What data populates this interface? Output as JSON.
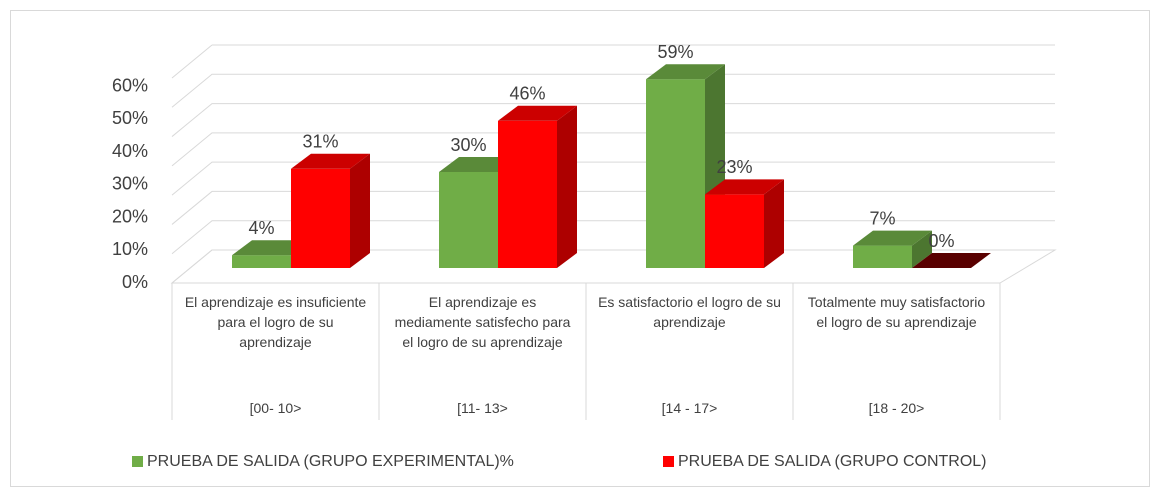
{
  "chart_data": {
    "type": "bar3d",
    "categories": [
      "El aprendizaje es insuficiente para el logro de su aprendizaje",
      "El aprendizaje es mediamente satisfecho para el logro de su aprendizaje",
      "Es satisfactorio el logro de su aprendizaje",
      "Totalmente muy satisfactorio el logro de su aprendizaje"
    ],
    "ranges": [
      "[00-  10>",
      "[11-  13>",
      "[14 - 17>",
      "[18 - 20>"
    ],
    "series": [
      {
        "name": "PRUEBA DE SALIDA (GRUPO EXPERIMENTAL)%",
        "color": "#70ad47",
        "values": [
          4,
          30,
          59,
          7
        ],
        "value_labels": [
          "4%",
          "30%",
          "59%",
          "7%"
        ]
      },
      {
        "name": "PRUEBA DE SALIDA (GRUPO CONTROL)",
        "color": "#ff0000",
        "values": [
          31,
          46,
          23,
          0
        ],
        "value_labels": [
          "31%",
          "46%",
          "23%",
          "0%"
        ]
      }
    ],
    "ylim": [
      0,
      70
    ],
    "yticks": [
      {
        "value": 0,
        "label": "0%"
      },
      {
        "value": 10,
        "label": "10%"
      },
      {
        "value": 20,
        "label": "20%"
      },
      {
        "value": 30,
        "label": "30%"
      },
      {
        "value": 40,
        "label": "40%"
      },
      {
        "value": 50,
        "label": "50%"
      },
      {
        "value": 60,
        "label": "60%"
      }
    ],
    "grid": true,
    "legend": "bottom"
  }
}
